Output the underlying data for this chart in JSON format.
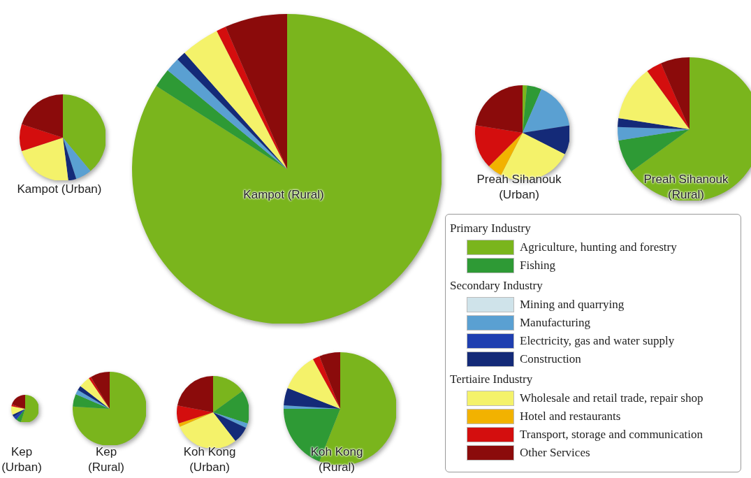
{
  "chart_data": [
    {
      "type": "pie",
      "title": "Kampot (Urban)",
      "legend": "bottom right",
      "annotations": [
        "Primary Industry",
        "Secondary Industry",
        "Tertiaire Industry"
      ],
      "categories": [
        "Agriculture, hunting and forestry",
        "Fishing",
        "Mining and quarrying",
        "Manufacturing",
        "Electricity, gas and water supply",
        "Construction",
        "Wholesale and retail trade, repair shop",
        "Hotel and restaurants",
        "Transport, storage and communication",
        "Other Services"
      ],
      "colors": [
        "#7ab51d",
        "#2e9a35",
        "#cfe3ea",
        "#5aa0d2",
        "#1f3fb0",
        "#142a78",
        "#f4f26a",
        "#f2b200",
        "#d40e0e",
        "#8b0b0b"
      ],
      "values": [
        39,
        0,
        0,
        6,
        0,
        3,
        22,
        0,
        10,
        20
      ]
    },
    {
      "type": "pie",
      "title": "Kampot (Rural)",
      "categories": [
        null,
        null,
        null,
        null,
        null,
        null,
        null,
        null,
        null,
        null
      ],
      "colors": [
        "#7ab51d",
        "#2e9a35",
        "#cfe3ea",
        "#5aa0d2",
        "#1f3fb0",
        "#142a78",
        "#f4f26a",
        "#f2b200",
        "#d40e0e",
        "#8b0b0b"
      ],
      "values": [
        84,
        2,
        0,
        1.5,
        0,
        1,
        4,
        0,
        1,
        6.5
      ]
    },
    {
      "type": "pie",
      "title": "Preah Sihanouk (Urban)",
      "categories": [
        null,
        null,
        null,
        null,
        null,
        null,
        null,
        null,
        null,
        null
      ],
      "colors": [
        "#7ab51d",
        "#2e9a35",
        "#cfe3ea",
        "#5aa0d2",
        "#1f3fb0",
        "#142a78",
        "#f4f26a",
        "#f2b200",
        "#d40e0e",
        "#8b0b0b"
      ],
      "values": [
        1.5,
        5,
        0,
        16,
        0,
        10,
        25,
        5,
        15,
        22.5
      ]
    },
    {
      "type": "pie",
      "title": "Preah Sihanouk (Rural)",
      "categories": [
        null,
        null,
        null,
        null,
        null,
        null,
        null,
        null,
        null,
        null
      ],
      "colors": [
        "#7ab51d",
        "#2e9a35",
        "#cfe3ea",
        "#5aa0d2",
        "#1f3fb0",
        "#142a78",
        "#f4f26a",
        "#f2b200",
        "#d40e0e",
        "#8b0b0b"
      ],
      "values": [
        65,
        7.5,
        0,
        3,
        0,
        2,
        12.5,
        0,
        3.5,
        6.5
      ]
    },
    {
      "type": "pie",
      "title": "Kep (Urban)",
      "categories": [
        null,
        null,
        null,
        null,
        null,
        null,
        null,
        null,
        null,
        null
      ],
      "colors": [
        "#7ab51d",
        "#2e9a35",
        "#cfe3ea",
        "#5aa0d2",
        "#1f3fb0",
        "#142a78",
        "#f4f26a",
        "#f2b200",
        "#d40e0e",
        "#8b0b0b"
      ],
      "values": [
        55,
        6,
        0,
        0,
        4,
        3,
        10,
        0,
        2,
        20
      ]
    },
    {
      "type": "pie",
      "title": "Kep (Rural)",
      "categories": [
        null,
        null,
        null,
        null,
        null,
        null,
        null,
        null,
        null,
        null
      ],
      "colors": [
        "#7ab51d",
        "#2e9a35",
        "#cfe3ea",
        "#5aa0d2",
        "#1f3fb0",
        "#142a78",
        "#f4f26a",
        "#f2b200",
        "#d40e0e",
        "#8b0b0b"
      ],
      "values": [
        76,
        5.5,
        0,
        2,
        0,
        2,
        5,
        0,
        1,
        8.5
      ]
    },
    {
      "type": "pie",
      "title": "Koh Kong (Urban)",
      "categories": [
        null,
        null,
        null,
        null,
        null,
        null,
        null,
        null,
        null,
        null
      ],
      "colors": [
        "#7ab51d",
        "#2e9a35",
        "#cfe3ea",
        "#5aa0d2",
        "#1f3fb0",
        "#142a78",
        "#f4f26a",
        "#f2b200",
        "#d40e0e",
        "#8b0b0b"
      ],
      "values": [
        15,
        15,
        0,
        2,
        0,
        7.5,
        29,
        1.5,
        8,
        22
      ]
    },
    {
      "type": "pie",
      "title": "Koh Kong (Rural)",
      "categories": [
        null,
        null,
        null,
        null,
        null,
        null,
        null,
        null,
        null,
        null
      ],
      "colors": [
        "#7ab51d",
        "#2e9a35",
        "#cfe3ea",
        "#5aa0d2",
        "#1f3fb0",
        "#142a78",
        "#f4f26a",
        "#f2b200",
        "#d40e0e",
        "#8b0b0b"
      ],
      "values": [
        56,
        19,
        0,
        1,
        0,
        5,
        11,
        0,
        2,
        6
      ]
    }
  ]
}
